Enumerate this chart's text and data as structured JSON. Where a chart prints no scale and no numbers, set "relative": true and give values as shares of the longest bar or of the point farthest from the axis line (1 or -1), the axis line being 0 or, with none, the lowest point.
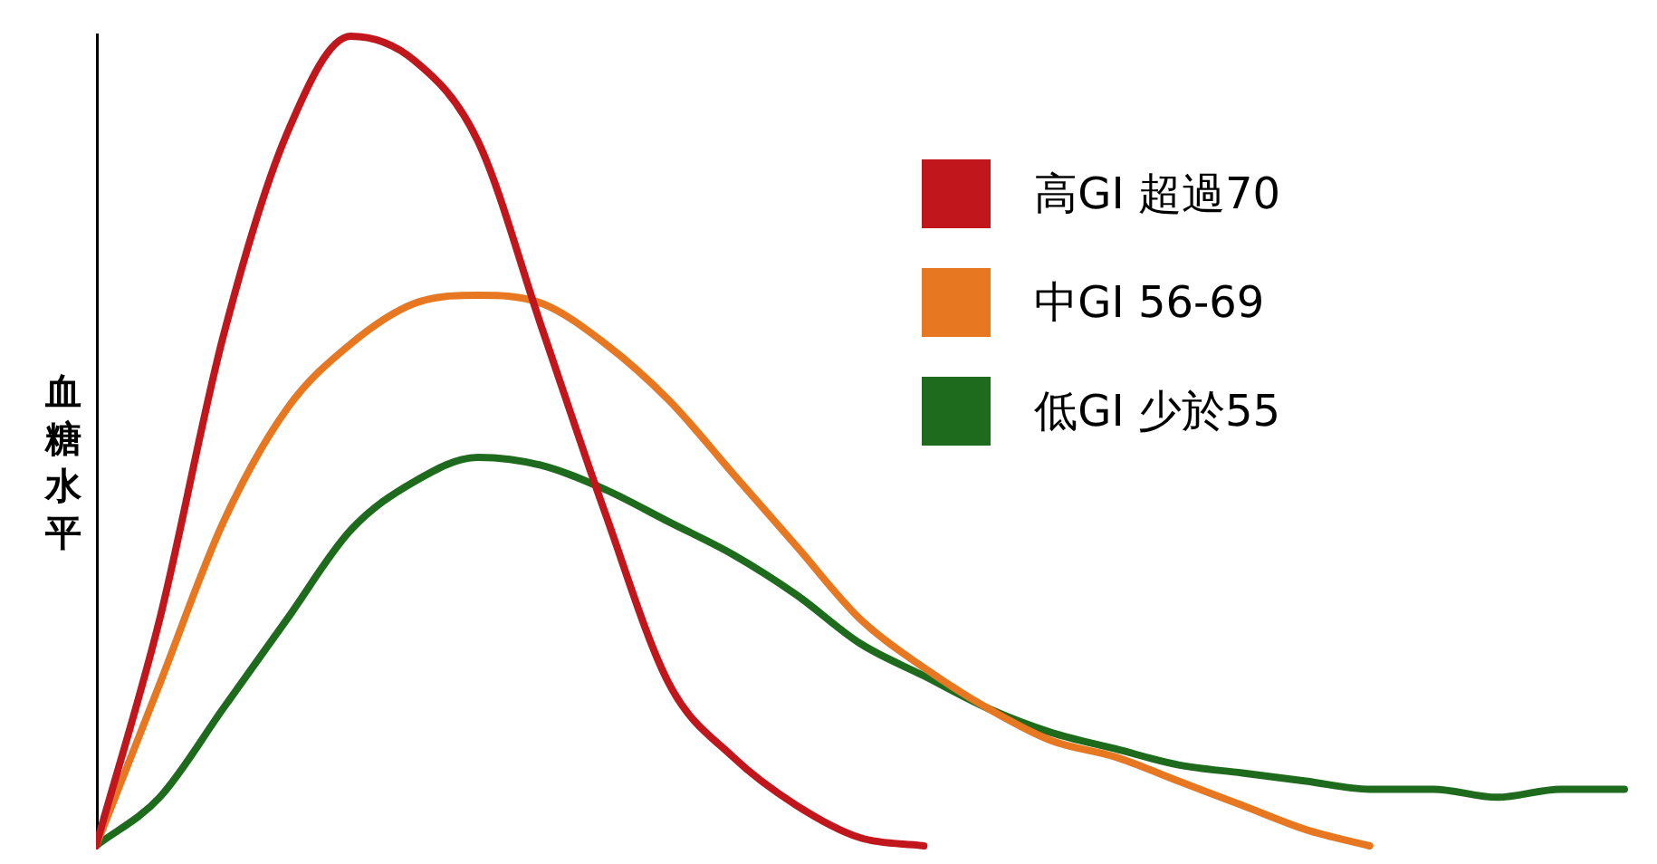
{
  "chart_data": {
    "type": "line",
    "relative": true,
    "ylabel": "血糖水平",
    "legend": "top right",
    "grid": false,
    "categories": [
      null,
      null,
      null,
      null,
      null,
      null,
      null,
      null,
      null,
      null,
      null,
      null,
      null,
      null,
      null,
      null,
      null,
      null,
      null,
      null,
      null,
      null,
      null,
      null,
      null
    ],
    "series": [
      {
        "name": "高GI 超過70",
        "color": "#c0161c",
        "values": [
          0,
          0.28,
          0.63,
          0.88,
          1,
          0.97,
          0.87,
          0.64,
          0.41,
          0.2,
          0.11,
          0.05,
          0.01,
          0,
          null,
          null,
          null,
          null,
          null,
          null,
          null,
          null,
          null,
          null,
          null
        ]
      },
      {
        "name": "中GI 56-69",
        "color": "#e87722",
        "values": [
          0,
          0.2,
          0.4,
          0.54,
          0.62,
          0.67,
          0.68,
          0.67,
          0.62,
          0.55,
          0.46,
          0.37,
          0.28,
          0.22,
          0.17,
          0.13,
          0.11,
          0.08,
          0.05,
          0.02,
          0,
          null,
          null,
          null,
          null
        ]
      },
      {
        "name": "低GI 少於55",
        "color": "#1e6b1e",
        "values": [
          0,
          0.06,
          0.17,
          0.28,
          0.39,
          0.45,
          0.48,
          0.47,
          0.44,
          0.4,
          0.36,
          0.31,
          0.25,
          0.21,
          0.17,
          0.14,
          0.12,
          0.1,
          0.09,
          0.08,
          0.07,
          0.07,
          0.06,
          0.07,
          0.07
        ]
      }
    ]
  }
}
